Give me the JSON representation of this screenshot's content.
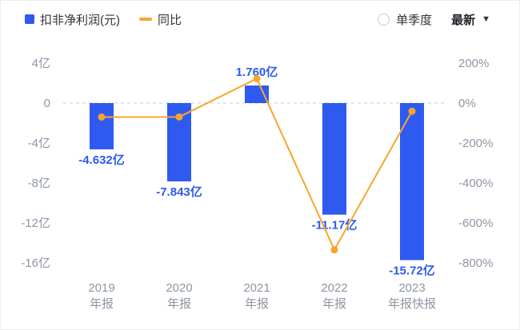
{
  "header": {
    "legend": [
      {
        "label": "扣非净利润(元)",
        "color": "#2e5af0",
        "marker": "square"
      },
      {
        "label": "同比",
        "color": "#f7a62b",
        "marker": "dash"
      }
    ],
    "controls": {
      "radio_label": "单季度",
      "dropdown_label": "最新",
      "caret": "▼"
    }
  },
  "chart_data": {
    "type": "bar",
    "title": "",
    "legend_position": "top",
    "categories": [
      "2019 年报",
      "2020 年报",
      "2021 年报",
      "2022 年报",
      "2023 年报快报"
    ],
    "categories_lines": [
      [
        "2019",
        "年报"
      ],
      [
        "2020",
        "年报"
      ],
      [
        "2021",
        "年报"
      ],
      [
        "2022",
        "年报"
      ],
      [
        "2023",
        "年报快报"
      ]
    ],
    "series": [
      {
        "name": "扣非净利润(元)",
        "type": "bar",
        "axis": "left",
        "unit": "亿",
        "color": "#2e5af0",
        "values": [
          -4.632,
          -7.843,
          1.76,
          -11.17,
          -15.72
        ],
        "labels": [
          "-4.632亿",
          "-7.843亿",
          "1.760亿",
          "-11.17亿",
          "-15.72亿"
        ]
      },
      {
        "name": "同比",
        "type": "line",
        "axis": "right",
        "unit": "%",
        "color": "#f7a62b",
        "values": [
          -70,
          -69.3,
          122.4,
          -734.7,
          -40.7
        ]
      }
    ],
    "left_axis": {
      "ticks": [
        "4亿",
        "0",
        "-4亿",
        "-8亿",
        "-12亿",
        "-16亿"
      ],
      "values": [
        4,
        0,
        -4,
        -8,
        -12,
        -16
      ],
      "range": [
        -17.6,
        4.8
      ]
    },
    "right_axis": {
      "ticks": [
        "200%",
        "0%",
        "-200%",
        "-400%",
        "-600%",
        "-800%"
      ],
      "values": [
        200,
        0,
        -200,
        -400,
        -600,
        -800
      ],
      "range": [
        -880,
        240
      ]
    },
    "grid": {
      "zero_line": "dashed"
    }
  }
}
